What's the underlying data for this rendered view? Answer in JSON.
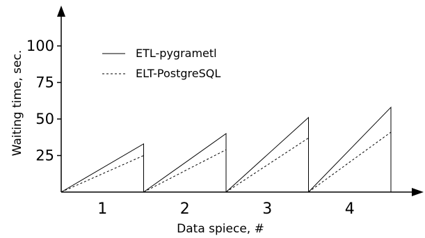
{
  "chart_data": {
    "type": "line",
    "title": "",
    "xlabel": "Data spiece, #",
    "ylabel": "Waiting time, sec.",
    "ylim": [
      0,
      120
    ],
    "yticks": [
      25,
      50,
      75,
      100
    ],
    "grid": false,
    "legend_position": "top-left",
    "categories": [
      "1",
      "2",
      "3",
      "4"
    ],
    "series": [
      {
        "name": "ETL-pygrametl",
        "line_style": "solid",
        "segments": [
          {
            "x": [
              0,
              1.0,
              1.0
            ],
            "y": [
              0,
              33,
              0
            ]
          },
          {
            "x": [
              1.0,
              2.0,
              2.0
            ],
            "y": [
              0,
              40,
              0
            ]
          },
          {
            "x": [
              2.0,
              3.0,
              3.0
            ],
            "y": [
              0,
              51,
              0
            ]
          },
          {
            "x": [
              3.0,
              4.0,
              4.0
            ],
            "y": [
              0,
              58,
              0
            ]
          }
        ]
      },
      {
        "name": "ELT-PostgreSQL",
        "line_style": "dashed",
        "segments": [
          {
            "x": [
              0,
              1.0
            ],
            "y": [
              0,
              25
            ]
          },
          {
            "x": [
              1.0,
              2.0
            ],
            "y": [
              0,
              29
            ]
          },
          {
            "x": [
              2.0,
              3.0
            ],
            "y": [
              0,
              37
            ]
          },
          {
            "x": [
              3.0,
              4.0
            ],
            "y": [
              0,
              41
            ]
          }
        ]
      }
    ]
  },
  "colors": {
    "axis": "#000000",
    "series": "#000000",
    "background": "#ffffff"
  }
}
